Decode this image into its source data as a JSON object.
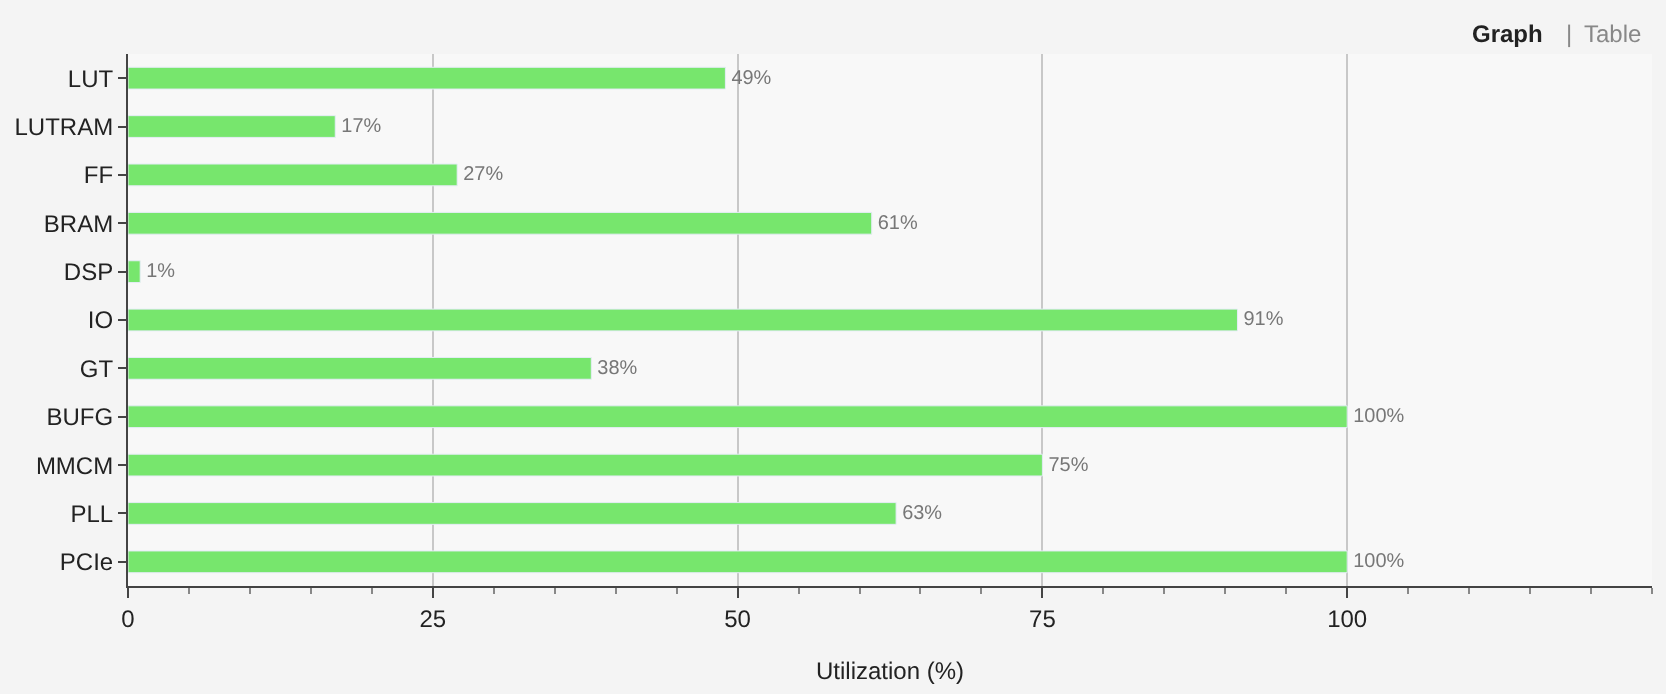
{
  "chart_data": {
    "type": "bar",
    "orientation": "horizontal",
    "xlabel": "Utilization (%)",
    "categories": [
      "LUT",
      "LUTRAM",
      "FF",
      "BRAM",
      "DSP",
      "IO",
      "GT",
      "BUFG",
      "MMCM",
      "PLL",
      "PCIe"
    ],
    "values": [
      49,
      17,
      27,
      61,
      1,
      91,
      38,
      100,
      75,
      63,
      100
    ],
    "value_labels": [
      "49%",
      "17%",
      "27%",
      "61%",
      "1%",
      "91%",
      "38%",
      "100%",
      "75%",
      "63%",
      "100%"
    ],
    "color": "#77e66d",
    "xlim": [
      0,
      125
    ],
    "xticks": [
      0,
      25,
      50,
      75,
      100
    ],
    "grid": "x",
    "annotations": [
      "Graph",
      "|",
      "Table"
    ]
  }
}
